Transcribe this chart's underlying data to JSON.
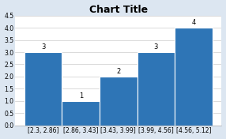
{
  "title": "Chart Title",
  "categories": [
    "[2.3, 2.86]",
    "[2.86, 3.43]",
    "[3.43, 3.99]",
    "[3.99, 4.56]",
    "[4.56, 5.12]"
  ],
  "values": [
    3,
    1,
    2,
    3,
    4
  ],
  "bar_color": "#2E75B6",
  "bar_edge_color": "#ffffff",
  "ylim": [
    0,
    4.5
  ],
  "yticks": [
    0,
    0.5,
    1.0,
    1.5,
    2.0,
    2.5,
    3.0,
    3.5,
    4.0,
    4.5
  ],
  "title_fontsize": 9,
  "label_fontsize": 6,
  "tick_fontsize": 5.5,
  "background_color": "#dce6f1",
  "plot_bg_color": "#ffffff"
}
